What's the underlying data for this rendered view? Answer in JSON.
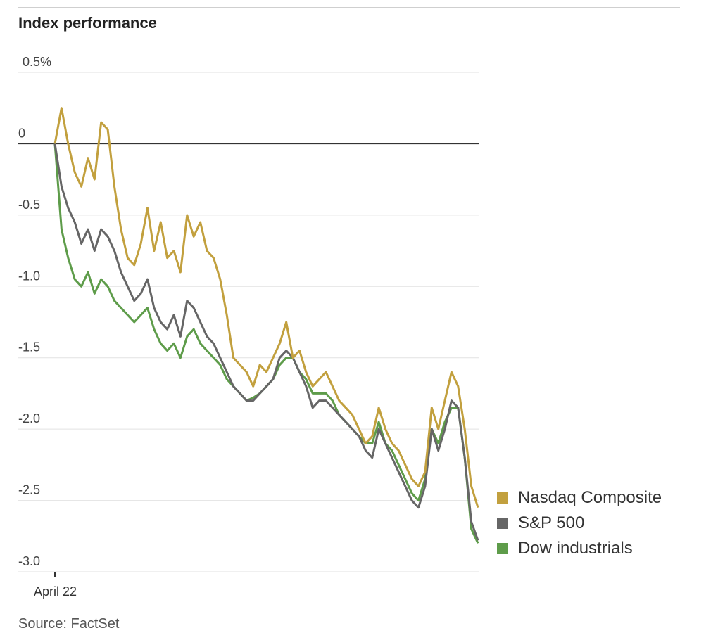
{
  "header": {
    "title": "Index performance"
  },
  "footer": {
    "source": "Source: FactSet"
  },
  "chart_data": {
    "type": "line",
    "title": "Index performance",
    "xlabel": "",
    "ylabel": "",
    "x_ticks": [
      "April 22"
    ],
    "y_ticks": [
      0.5,
      0,
      -0.5,
      -1.0,
      -1.5,
      -2.0,
      -2.5,
      -3.0
    ],
    "y_tick_labels": [
      "0.5%",
      "0",
      "-0.5",
      "-1.0",
      "-1.5",
      "-2.0",
      "-2.5",
      "-3.0"
    ],
    "ylim": [
      -3.0,
      0.5
    ],
    "grid": true,
    "legend_position": "bottom-right",
    "series": [
      {
        "name": "Nasdaq Composite",
        "color": "#c2a03e",
        "values": [
          0.0,
          0.25,
          0.0,
          -0.2,
          -0.3,
          -0.1,
          -0.25,
          0.15,
          0.1,
          -0.3,
          -0.6,
          -0.8,
          -0.85,
          -0.7,
          -0.45,
          -0.75,
          -0.55,
          -0.8,
          -0.75,
          -0.9,
          -0.5,
          -0.65,
          -0.55,
          -0.75,
          -0.8,
          -0.95,
          -1.2,
          -1.5,
          -1.55,
          -1.6,
          -1.7,
          -1.55,
          -1.6,
          -1.5,
          -1.4,
          -1.25,
          -1.5,
          -1.45,
          -1.6,
          -1.7,
          -1.65,
          -1.6,
          -1.7,
          -1.8,
          -1.85,
          -1.9,
          -2.0,
          -2.1,
          -2.05,
          -1.85,
          -2.0,
          -2.1,
          -2.15,
          -2.25,
          -2.35,
          -2.4,
          -2.3,
          -1.85,
          -2.0,
          -1.8,
          -1.6,
          -1.7,
          -2.0,
          -2.4,
          -2.55
        ]
      },
      {
        "name": "S&P 500",
        "color": "#666666",
        "values": [
          0.0,
          -0.3,
          -0.45,
          -0.55,
          -0.7,
          -0.6,
          -0.75,
          -0.6,
          -0.65,
          -0.75,
          -0.9,
          -1.0,
          -1.1,
          -1.05,
          -0.95,
          -1.15,
          -1.25,
          -1.3,
          -1.2,
          -1.35,
          -1.1,
          -1.15,
          -1.25,
          -1.35,
          -1.4,
          -1.5,
          -1.6,
          -1.7,
          -1.75,
          -1.8,
          -1.8,
          -1.75,
          -1.7,
          -1.65,
          -1.5,
          -1.45,
          -1.5,
          -1.6,
          -1.7,
          -1.85,
          -1.8,
          -1.8,
          -1.85,
          -1.9,
          -1.95,
          -2.0,
          -2.05,
          -2.15,
          -2.2,
          -2.0,
          -2.1,
          -2.2,
          -2.3,
          -2.4,
          -2.5,
          -2.55,
          -2.4,
          -2.0,
          -2.15,
          -2.0,
          -1.8,
          -1.85,
          -2.2,
          -2.65,
          -2.78
        ]
      },
      {
        "name": "Dow industrials",
        "color": "#5e9c4a",
        "values": [
          0.0,
          -0.6,
          -0.8,
          -0.95,
          -1.0,
          -0.9,
          -1.05,
          -0.95,
          -1.0,
          -1.1,
          -1.15,
          -1.2,
          -1.25,
          -1.2,
          -1.15,
          -1.3,
          -1.4,
          -1.45,
          -1.4,
          -1.5,
          -1.35,
          -1.3,
          -1.4,
          -1.45,
          -1.5,
          -1.55,
          -1.65,
          -1.7,
          -1.75,
          -1.8,
          -1.78,
          -1.75,
          -1.7,
          -1.65,
          -1.55,
          -1.5,
          -1.5,
          -1.6,
          -1.65,
          -1.75,
          -1.75,
          -1.75,
          -1.8,
          -1.9,
          -1.95,
          -2.0,
          -2.05,
          -2.1,
          -2.1,
          -1.95,
          -2.1,
          -2.15,
          -2.25,
          -2.35,
          -2.45,
          -2.5,
          -2.35,
          -2.0,
          -2.1,
          -1.95,
          -1.85,
          -1.85,
          -2.2,
          -2.7,
          -2.8
        ]
      }
    ]
  }
}
